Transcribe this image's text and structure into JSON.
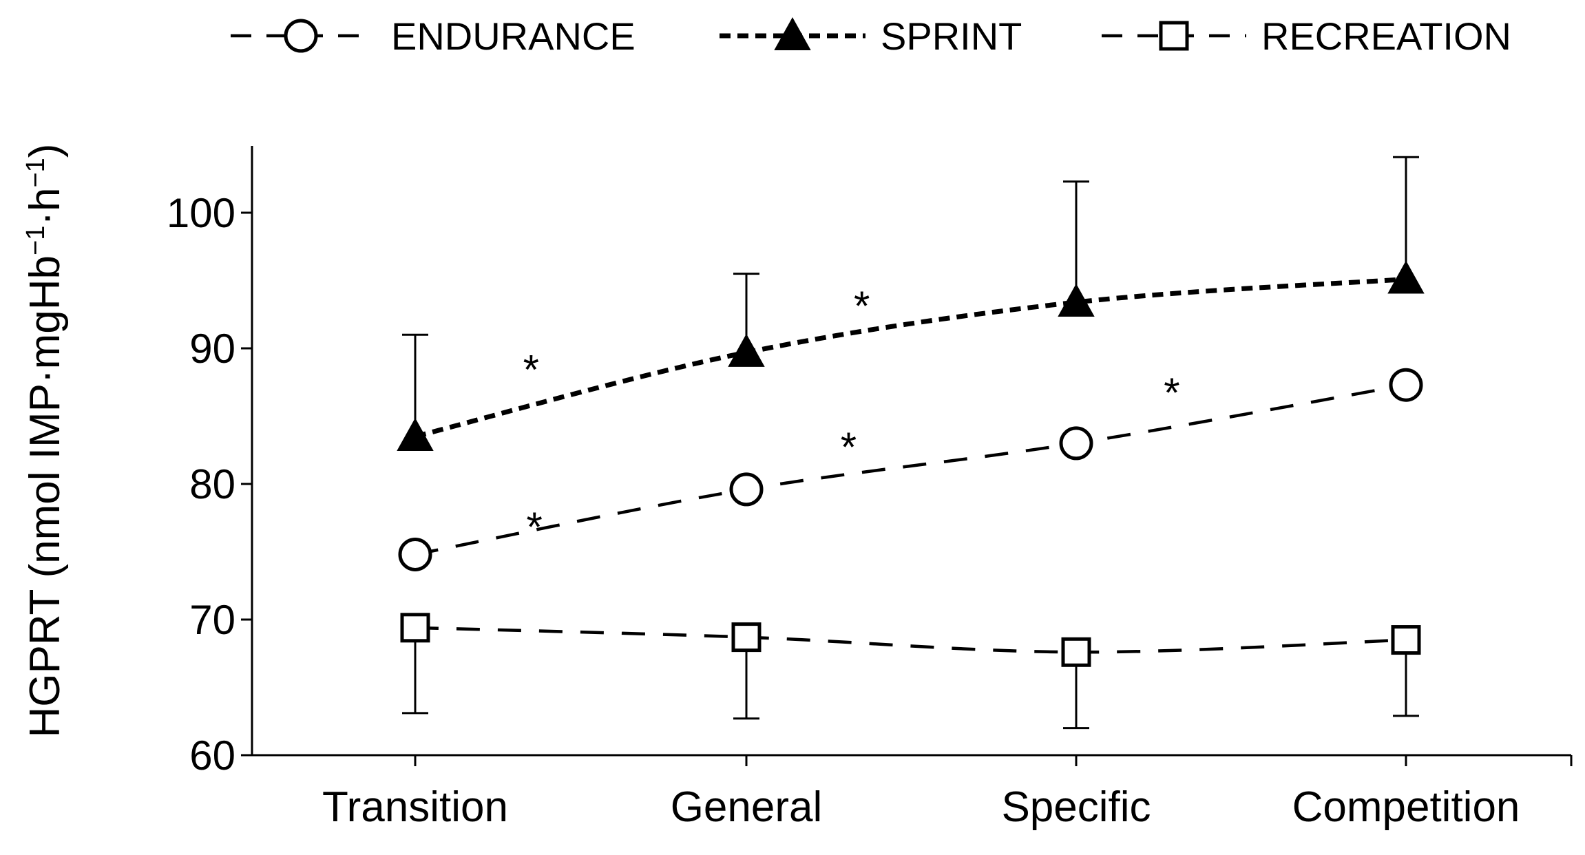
{
  "chart_data": {
    "type": "line",
    "title": "",
    "xlabel": "",
    "ylabel": "HGPRT (nmol IMP·mgHb",
    "ylabel_parts": [
      "HGPRT (nmol IMP·mgHb",
      "−1",
      "·h",
      "−1",
      ")"
    ],
    "categories": [
      "Transition",
      "General",
      "Specific",
      "Competition"
    ],
    "ylim": [
      60,
      105
    ],
    "yticks": [
      "60",
      "70",
      "80",
      "90",
      "100"
    ],
    "grid": false,
    "legend_position": "top",
    "series": [
      {
        "name": "ENDURANCE",
        "values": [
          74.8,
          79.6,
          83.0,
          87.3
        ],
        "error_high": [
          null,
          null,
          null,
          null
        ],
        "error_low": [
          null,
          null,
          null,
          null
        ],
        "marker": "circle-open",
        "line_style": "long-dash",
        "color": "#000000"
      },
      {
        "name": "SPRINT",
        "values": [
          83.5,
          89.7,
          93.4,
          95.1
        ],
        "error_high": [
          91.0,
          95.5,
          102.3,
          104.1
        ],
        "error_low": [
          null,
          null,
          null,
          null
        ],
        "marker": "triangle-filled",
        "line_style": "short-dash",
        "color": "#000000"
      },
      {
        "name": "RECREATION",
        "values": [
          69.4,
          68.7,
          67.6,
          68.5
        ],
        "error_high": [
          null,
          null,
          null,
          null
        ],
        "error_low": [
          63.1,
          62.7,
          62.0,
          62.9
        ],
        "marker": "square-open",
        "line_style": "long-dash",
        "color": "#000000"
      }
    ],
    "annotations": [
      {
        "text": "*",
        "x": 0.35,
        "y": 88.5
      },
      {
        "text": "*",
        "x": 1.35,
        "y": 93.2
      },
      {
        "text": "*",
        "x": 0.36,
        "y": 76.9
      },
      {
        "text": "*",
        "x": 1.31,
        "y": 82.8
      },
      {
        "text": "*",
        "x": 2.29,
        "y": 86.8
      }
    ]
  }
}
